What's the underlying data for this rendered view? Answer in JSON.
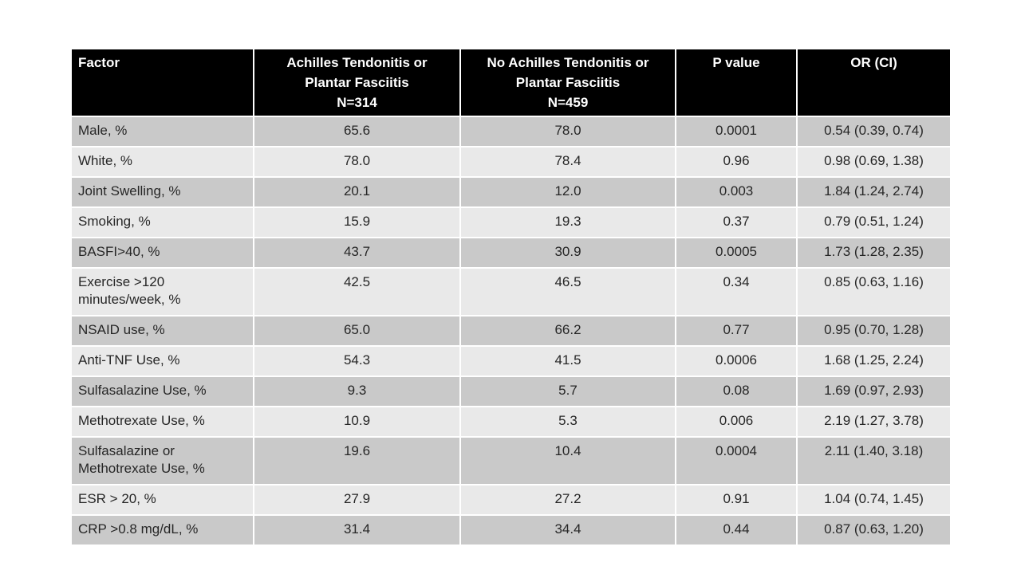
{
  "page": {
    "background_color": "#ffffff"
  },
  "table": {
    "colors": {
      "header_bg": "#000000",
      "header_text": "#ffffff",
      "row_band_dark": "#c9c9c9",
      "row_band_light": "#e9e9e9",
      "cell_text": "#262626",
      "divider": "#ffffff"
    },
    "columns": [
      {
        "key": "factor",
        "label": "Factor"
      },
      {
        "key": "achilles",
        "label": "Achilles Tendonitis or\nPlantar Fasciitis\nN=314"
      },
      {
        "key": "no_achilles",
        "label": "No Achilles Tendonitis or\nPlantar Fasciitis\nN=459"
      },
      {
        "key": "p_value",
        "label": "P value"
      },
      {
        "key": "or_ci",
        "label": "OR (CI)"
      }
    ],
    "rows": [
      {
        "factor": "Male, %",
        "achilles": "65.6",
        "no_achilles": "78.0",
        "p_value": "0.0001",
        "or_ci": "0.54 (0.39, 0.74)"
      },
      {
        "factor": "White, %",
        "achilles": "78.0",
        "no_achilles": "78.4",
        "p_value": "0.96",
        "or_ci": "0.98 (0.69, 1.38)"
      },
      {
        "factor": "Joint Swelling, %",
        "achilles": "20.1",
        "no_achilles": "12.0",
        "p_value": "0.003",
        "or_ci": "1.84 (1.24, 2.74)"
      },
      {
        "factor": "Smoking, %",
        "achilles": "15.9",
        "no_achilles": "19.3",
        "p_value": "0.37",
        "or_ci": "0.79 (0.51, 1.24)"
      },
      {
        "factor": "BASFI>40, %",
        "achilles": "43.7",
        "no_achilles": "30.9",
        "p_value": "0.0005",
        "or_ci": "1.73 (1.28, 2.35)"
      },
      {
        "factor": "Exercise >120\nminutes/week, %",
        "achilles": "42.5",
        "no_achilles": "46.5",
        "p_value": "0.34",
        "or_ci": "0.85 (0.63, 1.16)"
      },
      {
        "factor": "NSAID use, %",
        "achilles": "65.0",
        "no_achilles": "66.2",
        "p_value": "0.77",
        "or_ci": "0.95 (0.70, 1.28)"
      },
      {
        "factor": "Anti-TNF Use, %",
        "achilles": "54.3",
        "no_achilles": "41.5",
        "p_value": "0.0006",
        "or_ci": "1.68 (1.25, 2.24)"
      },
      {
        "factor": "Sulfasalazine Use, %",
        "achilles": "9.3",
        "no_achilles": "5.7",
        "p_value": "0.08",
        "or_ci": "1.69 (0.97, 2.93)"
      },
      {
        "factor": "Methotrexate Use, %",
        "achilles": "10.9",
        "no_achilles": "5.3",
        "p_value": "0.006",
        "or_ci": "2.19 (1.27, 3.78)"
      },
      {
        "factor": "Sulfasalazine or\nMethotrexate Use, %",
        "achilles": "19.6",
        "no_achilles": "10.4",
        "p_value": "0.0004",
        "or_ci": "2.11 (1.40, 3.18)"
      },
      {
        "factor": "ESR > 20, %",
        "achilles": "27.9",
        "no_achilles": "27.2",
        "p_value": "0.91",
        "or_ci": "1.04 (0.74, 1.45)"
      },
      {
        "factor": "CRP >0.8 mg/dL, %",
        "achilles": "31.4",
        "no_achilles": "34.4",
        "p_value": "0.44",
        "or_ci": "0.87 (0.63, 1.20)"
      }
    ]
  }
}
